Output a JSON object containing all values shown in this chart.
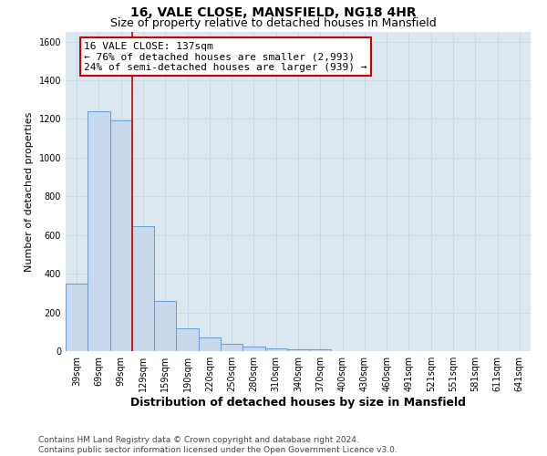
{
  "title": "16, VALE CLOSE, MANSFIELD, NG18 4HR",
  "subtitle": "Size of property relative to detached houses in Mansfield",
  "xlabel": "Distribution of detached houses by size in Mansfield",
  "ylabel": "Number of detached properties",
  "bar_values": [
    350,
    1240,
    1195,
    645,
    260,
    120,
    70,
    40,
    25,
    15,
    10,
    8,
    0,
    0,
    0,
    0,
    0,
    0,
    0,
    0,
    0
  ],
  "bin_labels": [
    "39sqm",
    "69sqm",
    "99sqm",
    "129sqm",
    "159sqm",
    "190sqm",
    "220sqm",
    "250sqm",
    "280sqm",
    "310sqm",
    "340sqm",
    "370sqm",
    "400sqm",
    "430sqm",
    "460sqm",
    "491sqm",
    "521sqm",
    "551sqm",
    "581sqm",
    "611sqm",
    "641sqm"
  ],
  "bar_color": "#c8d9ed",
  "bar_edge_color": "#6699cc",
  "annotation_box_text": "16 VALE CLOSE: 137sqm\n← 76% of detached houses are smaller (2,993)\n24% of semi-detached houses are larger (939) →",
  "annotation_box_color": "#ffffff",
  "annotation_box_edge_color": "#cc0000",
  "annotation_line_color": "#cc0000",
  "ylim": [
    0,
    1650
  ],
  "yticks": [
    0,
    200,
    400,
    600,
    800,
    1000,
    1200,
    1400,
    1600
  ],
  "grid_color": "#c8d8e8",
  "background_color": "#dce8f0",
  "footer_line1": "Contains HM Land Registry data © Crown copyright and database right 2024.",
  "footer_line2": "Contains public sector information licensed under the Open Government Licence v3.0.",
  "title_fontsize": 10,
  "subtitle_fontsize": 9,
  "xlabel_fontsize": 9,
  "ylabel_fontsize": 8,
  "tick_fontsize": 7,
  "footer_fontsize": 6.5,
  "annotation_fontsize": 8
}
